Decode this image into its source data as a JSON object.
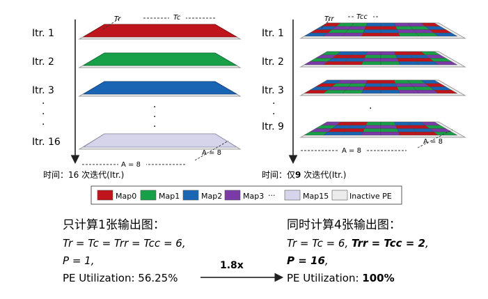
{
  "left_panel": {
    "iter_labels": [
      "Itr. 1",
      "Itr. 2",
      "Itr. 3",
      "Itr. 16"
    ],
    "dims": {
      "tr": "Tr",
      "tc": "Tc",
      "a": "A = 8",
      "a_side": "A = 8"
    },
    "time_label": "时间：16 次迭代(Itr.)"
  },
  "right_panel": {
    "iter_labels": [
      "Itr. 1",
      "Itr. 2",
      "Itr. 3",
      "Itr. 9"
    ],
    "dims": {
      "trr": "Trr",
      "tcc": "Tcc",
      "a": "A = 8",
      "a_side": "A = 8"
    },
    "time_label_prefix": "时间：仅",
    "time_label_bold": "9",
    "time_label_suffix": " 次迭代(Itr.)"
  },
  "legend": {
    "items": [
      {
        "label": "Map0",
        "color": "#c0141c"
      },
      {
        "label": "Map1",
        "color": "#18a048"
      },
      {
        "label": "Map2",
        "color": "#1a64b4"
      },
      {
        "label": "Map3",
        "color": "#7a3aa8"
      },
      {
        "label": "Map15",
        "color": "#d6d4ea"
      },
      {
        "label": "Inactive PE",
        "color": "#ececec"
      }
    ],
    "ellipsis": "···"
  },
  "bottom_left": {
    "heading": "只计算1张输出图：",
    "line1": "Tr = Tc = Trr = Tcc = 6,",
    "line2": "P = 1,",
    "line3": "PE Utilization: 56.25%"
  },
  "bottom_right": {
    "heading": "同时计算4张输出图：",
    "line1_normal": "Tr = Tc = 6, ",
    "line1_bold": "Trr = Tcc = 2",
    "line1_tail": ",",
    "line2_bold": "P = 16",
    "line2_tail": ",",
    "line3_normal": "PE Utilization: ",
    "line3_bold": "100%"
  },
  "speedup": "1.8x"
}
